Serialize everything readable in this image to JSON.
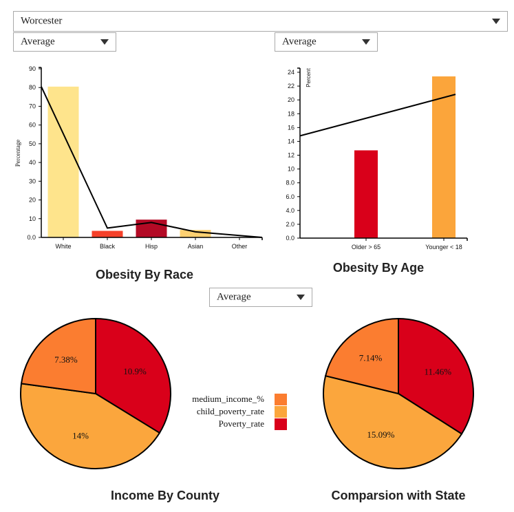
{
  "county_select": {
    "value": "Worcester"
  },
  "race_select": {
    "value": "Average"
  },
  "age_select": {
    "value": "Average"
  },
  "income_select": {
    "value": "Average"
  },
  "colors": {
    "yellow": "#fee48c",
    "orange_red": "#f5412a",
    "dark_red": "#b30a25",
    "light_orange": "#fdd071",
    "red": "#d9001a",
    "orange": "#fba53b",
    "pie_orange": "#fb7d30",
    "pie_light": "#fba63d",
    "pie_red": "#d9001a"
  },
  "chart_data": [
    {
      "id": "race",
      "type": "bar",
      "title": "Obesity By Race",
      "ylabel": "Percentage",
      "ylim": [
        0,
        90
      ],
      "yticks": [
        "0.0",
        "10",
        "20",
        "30",
        "40",
        "50",
        "60",
        "70",
        "80",
        "90"
      ],
      "categories": [
        "White",
        "Black",
        "Hisp",
        "Asian",
        "Other"
      ],
      "values": [
        80.5,
        3.5,
        9.5,
        4.0,
        0
      ],
      "bar_colors": [
        "#fee48c",
        "#f5412a",
        "#b30a25",
        "#fdd071",
        "#fee48c"
      ],
      "line_values": [
        80.5,
        5.0,
        8.0,
        3.0,
        0
      ]
    },
    {
      "id": "age",
      "type": "bar",
      "title": "Obesity By Age",
      "ylabel": "Percent",
      "ylim": [
        0,
        24
      ],
      "yticks": [
        "0.0",
        "2.0",
        "4.0",
        "6.0",
        "8.0",
        "10",
        "12",
        "14",
        "16",
        "18",
        "20",
        "22",
        "24"
      ],
      "categories": [
        "Older > 65",
        "Younger < 18"
      ],
      "values": [
        12.7,
        23.4
      ],
      "bar_colors": [
        "#d9001a",
        "#fba53b"
      ],
      "line": {
        "start": 14.8,
        "end": 20.8
      }
    },
    {
      "id": "income",
      "type": "pie",
      "title": "Income By County",
      "slices": [
        {
          "name": "Poverty_rate",
          "value": 10.9,
          "label": "10.9%",
          "color": "#d9001a"
        },
        {
          "name": "child_poverty_rate",
          "value": 14,
          "label": "14%",
          "color": "#fba63d"
        },
        {
          "name": "medium_income_%",
          "value": 7.38,
          "label": "7.38%",
          "color": "#fb7d30"
        }
      ]
    },
    {
      "id": "state",
      "type": "pie",
      "title": "Comparsion with State",
      "slices": [
        {
          "name": "Poverty_rate",
          "value": 11.46,
          "label": "11.46%",
          "color": "#d9001a"
        },
        {
          "name": "child_poverty_rate",
          "value": 15.09,
          "label": "15.09%",
          "color": "#fba63d"
        },
        {
          "name": "medium_income_%",
          "value": 7.14,
          "label": "7.14%",
          "color": "#fb7d30"
        }
      ]
    }
  ],
  "legend": [
    {
      "name": "medium_income_%",
      "color": "#fb7d30"
    },
    {
      "name": "child_poverty_rate",
      "color": "#fba63d"
    },
    {
      "name": "Poverty_rate",
      "color": "#d9001a"
    }
  ]
}
